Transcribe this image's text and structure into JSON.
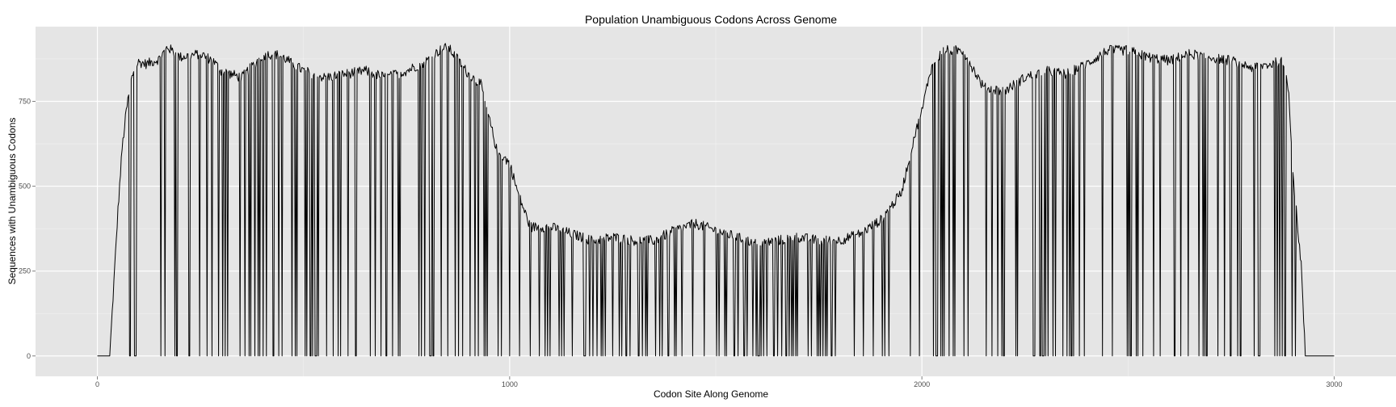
{
  "chart_data": {
    "type": "line",
    "title": "Population Unambiguous Codons Across Genome",
    "xlabel": "Codon Site Along Genome",
    "ylabel": "Sequences with Unambiguous Codons",
    "xlim": [
      -150,
      3150
    ],
    "ylim": [
      -60,
      970
    ],
    "x_ticks": [
      0,
      1000,
      2000,
      3000
    ],
    "y_ticks": [
      0,
      250,
      500,
      750
    ],
    "x_tick_labels": [
      "0",
      "1000",
      "2000",
      "3000"
    ],
    "y_tick_labels": [
      "0",
      "250",
      "500",
      "750"
    ],
    "grid": true,
    "legend": "none",
    "colors": {
      "panel_background": "#e5e5e5",
      "gridline": "#ffffff",
      "line": "#000000"
    },
    "series": [
      {
        "values_description": "approximate envelope of coverage per codon site",
        "x": [
          0,
          30,
          50,
          60,
          70,
          80,
          90,
          100,
          120,
          150,
          170,
          200,
          250,
          280,
          300,
          350,
          400,
          430,
          450,
          500,
          550,
          600,
          650,
          700,
          750,
          800,
          830,
          850,
          870,
          900,
          930,
          950,
          970,
          1000,
          1020,
          1050,
          1100,
          1150,
          1200,
          1250,
          1300,
          1350,
          1400,
          1450,
          1500,
          1550,
          1600,
          1650,
          1700,
          1750,
          1800,
          1850,
          1900,
          1950,
          1980,
          2000,
          2020,
          2050,
          2100,
          2150,
          2200,
          2250,
          2300,
          2350,
          2400,
          2450,
          2500,
          2550,
          2600,
          2650,
          2700,
          2750,
          2800,
          2850,
          2870,
          2880,
          2890,
          2900,
          2910,
          2920,
          2930,
          3000
        ],
        "y": [
          0,
          0,
          430,
          610,
          720,
          800,
          850,
          865,
          860,
          875,
          910,
          880,
          890,
          870,
          840,
          820,
          885,
          890,
          880,
          840,
          820,
          830,
          840,
          820,
          840,
          870,
          900,
          910,
          880,
          830,
          800,
          700,
          600,
          570,
          480,
          380,
          380,
          360,
          340,
          350,
          340,
          340,
          370,
          390,
          370,
          350,
          330,
          340,
          350,
          340,
          340,
          360,
          400,
          480,
          640,
          720,
          840,
          900,
          900,
          790,
          780,
          820,
          840,
          830,
          860,
          900,
          900,
          880,
          870,
          890,
          880,
          870,
          850,
          860,
          870,
          850,
          780,
          540,
          400,
          270,
          0,
          0
        ]
      }
    ]
  }
}
